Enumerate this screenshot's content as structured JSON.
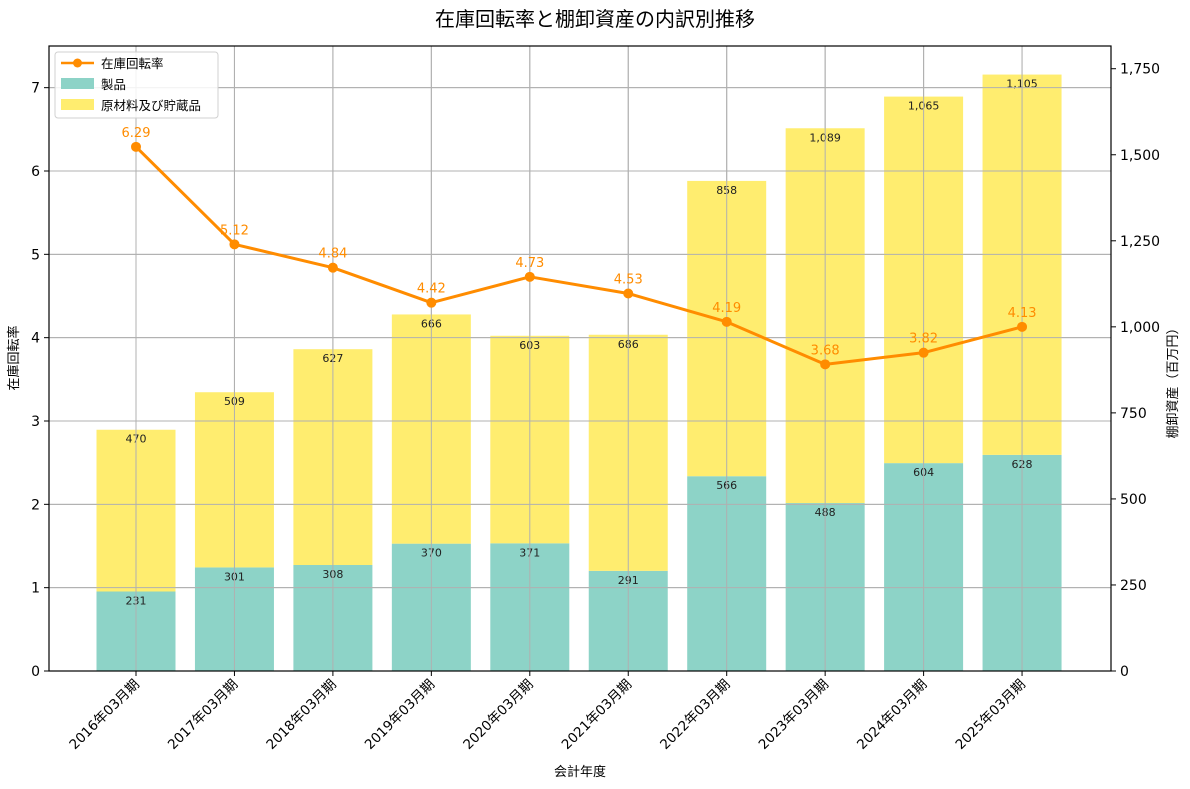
{
  "chart_data": {
    "type": "bar",
    "subtype": "stacked-bar-with-line-dual-axis",
    "title": "在庫回転率と棚卸資産の内訳別推移",
    "xlabel": "会計年度",
    "ylabel_left": "在庫回転率",
    "ylabel_right": "棚卸資産（百万円）",
    "categories": [
      "2016年03月期",
      "2017年03月期",
      "2018年03月期",
      "2019年03月期",
      "2020年03月期",
      "2021年03月期",
      "2022年03月期",
      "2023年03月期",
      "2024年03月期",
      "2025年03月期"
    ],
    "series": [
      {
        "name": "在庫回転率",
        "type": "line",
        "axis": "left",
        "color": "#ff8c00",
        "values": [
          6.29,
          5.12,
          4.84,
          4.42,
          4.73,
          4.53,
          4.19,
          3.68,
          3.82,
          4.13
        ],
        "labels": [
          "6.29",
          "5.12",
          "4.84",
          "4.42",
          "4.73",
          "4.53",
          "4.19",
          "3.68",
          "3.82",
          "4.13"
        ]
      },
      {
        "name": "製品",
        "type": "bar",
        "axis": "right",
        "stack": "inventory",
        "color": "#8dd3c7",
        "values": [
          231,
          301,
          308,
          370,
          371,
          291,
          566,
          488,
          604,
          628
        ],
        "labels": [
          "231",
          "301",
          "308",
          "370",
          "371",
          "291",
          "566",
          "488",
          "604",
          "628"
        ]
      },
      {
        "name": "原材料及び貯蔵品",
        "type": "bar",
        "axis": "right",
        "stack": "inventory",
        "color": "#ffed6f",
        "values": [
          470,
          509,
          627,
          666,
          603,
          686,
          858,
          1089,
          1065,
          1105
        ],
        "labels": [
          "470",
          "509",
          "627",
          "666",
          "603",
          "686",
          "858",
          "1,089",
          "1,065",
          "1,105"
        ]
      }
    ],
    "ylim_left": [
      0,
      7.5
    ],
    "yticks_left": [
      "0",
      "1",
      "2",
      "3",
      "4",
      "5",
      "6",
      "7"
    ],
    "ylim_right": [
      0,
      1816
    ],
    "yticks_right": [
      "0",
      "250",
      "500",
      "750",
      "1,000",
      "1,250",
      "1,500",
      "1,750"
    ],
    "grid": true,
    "legend_position": "upper left",
    "legend": [
      "在庫回転率",
      "製品",
      "原材料及び貯蔵品"
    ]
  }
}
